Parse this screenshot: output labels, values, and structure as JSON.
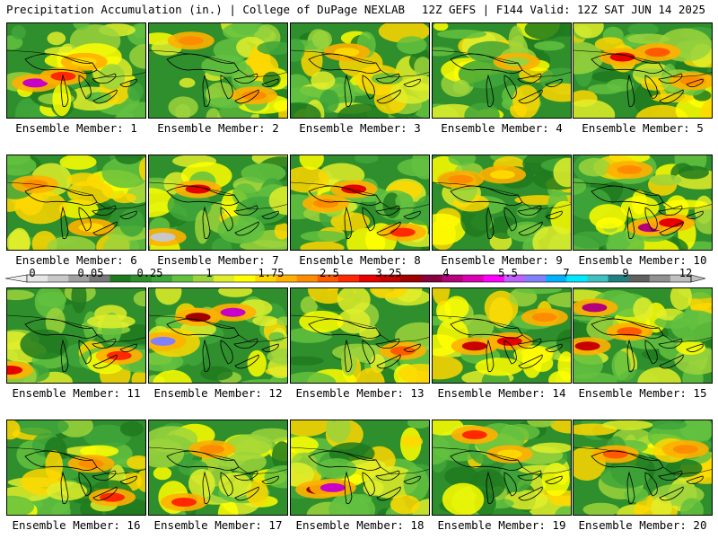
{
  "header": {
    "left": "Precipitation Accumulation (in.) | College of DuPage NEXLAB",
    "right": "12Z GEFS | F144 Valid: 12Z SAT JUN 14 2025"
  },
  "panels": [
    {
      "label": "Ensemble Member: 1"
    },
    {
      "label": "Ensemble Member: 2"
    },
    {
      "label": "Ensemble Member: 3"
    },
    {
      "label": "Ensemble Member: 4"
    },
    {
      "label": "Ensemble Member: 5"
    },
    {
      "label": "Ensemble Member: 6"
    },
    {
      "label": "Ensemble Member: 7"
    },
    {
      "label": "Ensemble Member: 8"
    },
    {
      "label": "Ensemble Member: 9"
    },
    {
      "label": "Ensemble Member: 10"
    },
    {
      "label": "Ensemble Member: 11"
    },
    {
      "label": "Ensemble Member: 12"
    },
    {
      "label": "Ensemble Member: 13"
    },
    {
      "label": "Ensemble Member: 14"
    },
    {
      "label": "Ensemble Member: 15"
    },
    {
      "label": "Ensemble Member: 16"
    },
    {
      "label": "Ensemble Member: 17"
    },
    {
      "label": "Ensemble Member: 18"
    },
    {
      "label": "Ensemble Member: 19"
    },
    {
      "label": "Ensemble Member: 20"
    }
  ],
  "colorbar": {
    "tick_labels": [
      "0",
      "0.05",
      "0.25",
      "1",
      "1.75",
      "2.5",
      "3.25",
      "4",
      "5.5",
      "7",
      "9",
      "12"
    ],
    "colors": [
      "#e6e6e6",
      "#c8c8c8",
      "#a0a0a0",
      "#787878",
      "#1e7a1e",
      "#2f8f2c",
      "#3fa63a",
      "#63c13f",
      "#9bd33c",
      "#e0ee2a",
      "#ffff00",
      "#ffd700",
      "#ffb000",
      "#ff8c00",
      "#ff5a00",
      "#ff2800",
      "#e60000",
      "#c80000",
      "#a00000",
      "#880040",
      "#b4007a",
      "#dc00b4",
      "#ff00ff",
      "#c060ff",
      "#8080ff",
      "#00b0ff",
      "#00e8ff",
      "#40c0c0",
      "#208080",
      "#606060",
      "#909090",
      "#c0c0c0"
    ]
  }
}
